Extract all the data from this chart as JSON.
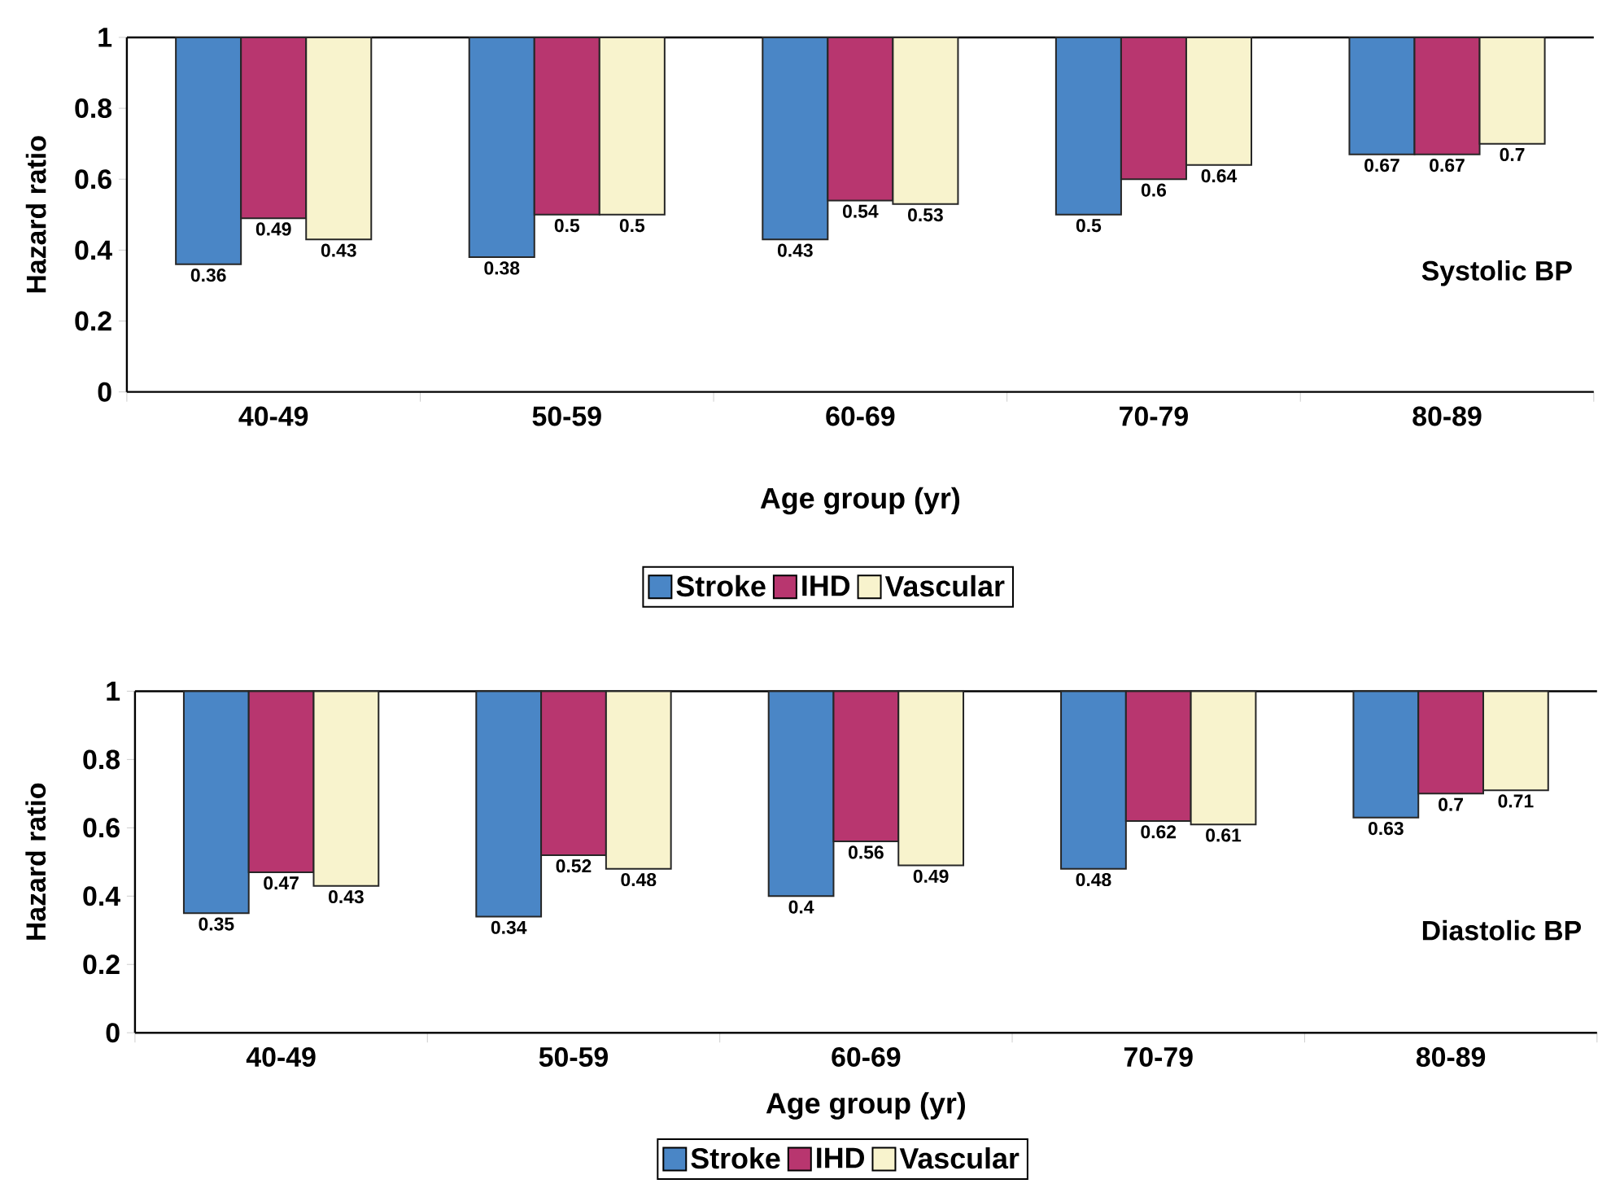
{
  "chart_data": [
    {
      "type": "bar",
      "xlabel": "Age group (yr)",
      "ylabel": "Hazard ratio",
      "categories": [
        "40-49",
        "50-59",
        "60-69",
        "70-79",
        "80-89"
      ],
      "ylim": [
        0,
        1
      ],
      "yticks": [
        0,
        0.2,
        0.4,
        0.6,
        0.8,
        1
      ],
      "legend": "bottom",
      "series": [
        {
          "name": "Stroke",
          "color": "#4a86c6",
          "base": [
            1,
            1,
            1,
            1,
            1
          ],
          "values": [
            -0.64,
            -0.62,
            -0.57,
            -0.5,
            -0.33
          ]
        },
        {
          "name": "IHD",
          "color": "#b8366f",
          "base": [
            1,
            1,
            1,
            1,
            1
          ],
          "values": [
            -0.51,
            -0.5,
            -0.46,
            -0.4,
            -0.33
          ]
        },
        {
          "name": "Vascular",
          "color": "#f8f3cd",
          "base": [
            1,
            1,
            1,
            1,
            1
          ],
          "values": [
            -0.57,
            -0.5,
            -0.47,
            -0.36,
            -0.3
          ]
        }
      ],
      "annotations": [
        "Systolic BP",
        "0.36",
        "0.49",
        "0.43",
        "0.38",
        "0.5",
        "0.5",
        "0.43",
        "0.54",
        "0.53",
        "0.5",
        "0.6",
        "0.64",
        "0.67",
        "0.67",
        "0.7"
      ]
    },
    {
      "type": "bar",
      "xlabel": "Age group (yr)",
      "ylabel": "Hazard ratio",
      "categories": [
        "40-49",
        "50-59",
        "60-69",
        "70-79",
        "80-89"
      ],
      "ylim": [
        0,
        1
      ],
      "yticks": [
        0,
        0.2,
        0.4,
        0.6,
        0.8,
        1
      ],
      "legend": "bottom",
      "series": [
        {
          "name": "Stroke",
          "color": "#4a86c6",
          "base": [
            1,
            1,
            1,
            1,
            1
          ],
          "values": [
            -0.65,
            -0.66,
            -0.6,
            -0.52,
            -0.37
          ]
        },
        {
          "name": "IHD",
          "color": "#b8366f",
          "base": [
            1,
            1,
            1,
            1,
            1
          ],
          "values": [
            -0.53,
            -0.48,
            -0.44,
            -0.38,
            -0.3
          ]
        },
        {
          "name": "Vascular",
          "color": "#f8f3cd",
          "base": [
            1,
            1,
            1,
            1,
            1
          ],
          "values": [
            -0.57,
            -0.52,
            -0.51,
            -0.39,
            -0.29
          ]
        }
      ],
      "annotations": [
        "Diastolic BP",
        "0.35",
        "0.47",
        "0.43",
        "0.34",
        "0.52",
        "0.48",
        "0.4",
        "0.56",
        "0.49",
        "0.48",
        "0.62",
        "0.61",
        "0.63",
        "0.7",
        "0.71"
      ]
    }
  ]
}
